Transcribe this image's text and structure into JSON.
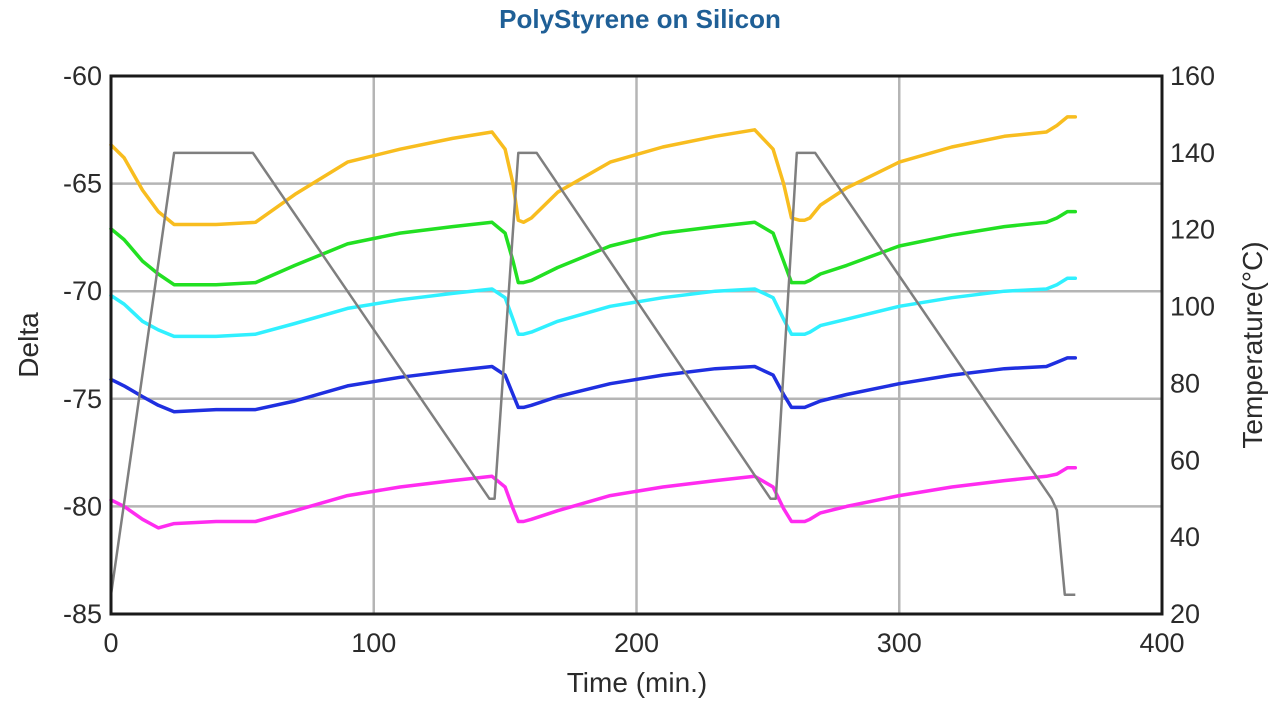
{
  "chart_data": {
    "type": "line",
    "title": "PolyStyrene on Silicon",
    "xlabel": "Time (min.)",
    "ylabel": "Delta",
    "y2label": "Temperature(°C)",
    "xlim": [
      0,
      400
    ],
    "ylim": [
      -85,
      -60
    ],
    "y2lim": [
      20,
      160
    ],
    "xticks": [
      0,
      100,
      200,
      300,
      400
    ],
    "yticks": [
      -60,
      -65,
      -70,
      -75,
      -80,
      -85
    ],
    "y2ticks": [
      160,
      140,
      120,
      100,
      80,
      60,
      40,
      20
    ],
    "grid": true,
    "series": [
      {
        "color": "#f8bd1f",
        "axis": "left",
        "x": [
          0,
          5,
          12,
          18,
          24,
          40,
          55,
          70,
          90,
          110,
          130,
          145,
          150,
          153,
          155,
          157,
          160,
          170,
          190,
          210,
          230,
          245,
          252,
          256,
          259,
          262,
          264,
          266,
          270,
          280,
          300,
          320,
          340,
          356,
          360,
          364,
          367
        ],
        "y": [
          -63.2,
          -63.8,
          -65.3,
          -66.3,
          -66.9,
          -66.9,
          -66.8,
          -65.5,
          -64.0,
          -63.4,
          -62.9,
          -62.6,
          -63.4,
          -65.0,
          -66.7,
          -66.8,
          -66.6,
          -65.4,
          -64.0,
          -63.3,
          -62.8,
          -62.5,
          -63.4,
          -65.0,
          -66.6,
          -66.7,
          -66.7,
          -66.6,
          -66.0,
          -65.2,
          -64.0,
          -63.3,
          -62.8,
          -62.6,
          -62.3,
          -61.9,
          -61.9
        ]
      },
      {
        "color": "#22e022",
        "axis": "left",
        "x": [
          0,
          5,
          12,
          18,
          24,
          40,
          55,
          70,
          90,
          110,
          130,
          145,
          150,
          153,
          155,
          157,
          160,
          170,
          190,
          210,
          230,
          245,
          252,
          256,
          259,
          262,
          264,
          266,
          270,
          280,
          300,
          320,
          340,
          356,
          360,
          364,
          367
        ],
        "y": [
          -67.1,
          -67.6,
          -68.6,
          -69.2,
          -69.7,
          -69.7,
          -69.6,
          -68.8,
          -67.8,
          -67.3,
          -67.0,
          -66.8,
          -67.3,
          -68.6,
          -69.6,
          -69.6,
          -69.5,
          -68.9,
          -67.9,
          -67.3,
          -67.0,
          -66.8,
          -67.3,
          -68.6,
          -69.6,
          -69.6,
          -69.6,
          -69.5,
          -69.2,
          -68.8,
          -67.9,
          -67.4,
          -67.0,
          -66.8,
          -66.6,
          -66.3,
          -66.3
        ]
      },
      {
        "color": "#30f0ff",
        "axis": "left",
        "x": [
          0,
          5,
          12,
          18,
          24,
          40,
          55,
          70,
          90,
          110,
          130,
          145,
          150,
          153,
          155,
          157,
          160,
          170,
          190,
          210,
          230,
          245,
          252,
          256,
          259,
          262,
          264,
          266,
          270,
          280,
          300,
          320,
          340,
          356,
          360,
          364,
          367
        ],
        "y": [
          -70.2,
          -70.6,
          -71.4,
          -71.8,
          -72.1,
          -72.1,
          -72.0,
          -71.5,
          -70.8,
          -70.4,
          -70.1,
          -69.9,
          -70.3,
          -71.3,
          -72.0,
          -72.0,
          -71.9,
          -71.4,
          -70.7,
          -70.3,
          -70.0,
          -69.9,
          -70.3,
          -71.3,
          -72.0,
          -72.0,
          -72.0,
          -71.9,
          -71.6,
          -71.3,
          -70.7,
          -70.3,
          -70.0,
          -69.9,
          -69.7,
          -69.4,
          -69.4
        ]
      },
      {
        "color": "#1f2fe0",
        "axis": "left",
        "x": [
          0,
          5,
          12,
          18,
          24,
          40,
          55,
          70,
          90,
          110,
          130,
          145,
          150,
          153,
          155,
          157,
          160,
          170,
          190,
          210,
          230,
          245,
          252,
          256,
          259,
          262,
          264,
          266,
          270,
          280,
          300,
          320,
          340,
          356,
          360,
          364,
          367
        ],
        "y": [
          -74.1,
          -74.4,
          -74.9,
          -75.3,
          -75.6,
          -75.5,
          -75.5,
          -75.1,
          -74.4,
          -74.0,
          -73.7,
          -73.5,
          -73.9,
          -74.8,
          -75.4,
          -75.4,
          -75.3,
          -74.9,
          -74.3,
          -73.9,
          -73.6,
          -73.5,
          -73.9,
          -74.8,
          -75.4,
          -75.4,
          -75.4,
          -75.3,
          -75.1,
          -74.8,
          -74.3,
          -73.9,
          -73.6,
          -73.5,
          -73.3,
          -73.1,
          -73.1
        ]
      },
      {
        "color": "#ff2cf0",
        "axis": "left",
        "x": [
          0,
          5,
          12,
          18,
          24,
          40,
          55,
          70,
          90,
          110,
          130,
          145,
          150,
          153,
          155,
          157,
          160,
          170,
          190,
          210,
          230,
          245,
          252,
          256,
          259,
          262,
          264,
          266,
          270,
          280,
          300,
          320,
          340,
          356,
          360,
          364,
          367
        ],
        "y": [
          -79.7,
          -80.0,
          -80.6,
          -81.0,
          -80.8,
          -80.7,
          -80.7,
          -80.2,
          -79.5,
          -79.1,
          -78.8,
          -78.6,
          -79.1,
          -80.1,
          -80.7,
          -80.7,
          -80.6,
          -80.2,
          -79.5,
          -79.1,
          -78.8,
          -78.6,
          -79.1,
          -80.1,
          -80.7,
          -80.7,
          -80.7,
          -80.6,
          -80.3,
          -80.0,
          -79.5,
          -79.1,
          -78.8,
          -78.6,
          -78.5,
          -78.2,
          -78.2
        ]
      },
      {
        "color": "#7f7f7f",
        "axis": "right",
        "x": [
          0,
          24,
          54,
          144,
          146,
          155,
          158,
          161,
          162,
          251,
          253,
          261,
          264,
          267,
          268,
          358,
          360,
          363,
          367
        ],
        "y": [
          25,
          140,
          140,
          50,
          50,
          140,
          140,
          140,
          140,
          50,
          50,
          140,
          140,
          140,
          140,
          50,
          47,
          25,
          25
        ]
      }
    ]
  }
}
